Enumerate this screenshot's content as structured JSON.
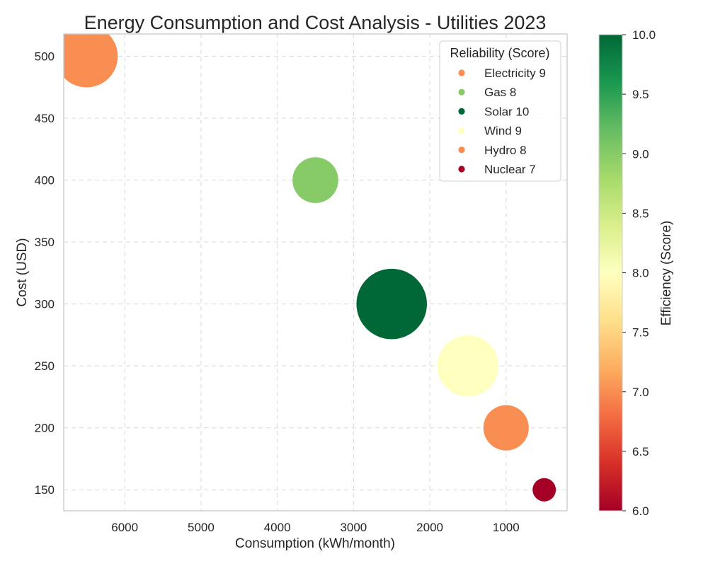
{
  "chart_data": {
    "type": "scatter",
    "title": "Energy Consumption and Cost Analysis - Utilities 2023",
    "xlabel": "Consumption (kWh/month)",
    "ylabel": "Cost (USD)",
    "xlim": [
      6800,
      200
    ],
    "ylim": [
      133,
      518
    ],
    "x_inverted": true,
    "xticks": [
      6000,
      5000,
      4000,
      3000,
      2000,
      1000
    ],
    "yticks": [
      150,
      200,
      250,
      300,
      350,
      400,
      450,
      500
    ],
    "grid": true,
    "legend": {
      "title": "Reliability (Score)",
      "position": "top-right"
    },
    "colorbar": {
      "label": "Efficiency (Score)",
      "min": 6.0,
      "max": 10.0,
      "ticks": [
        "6.0",
        "6.5",
        "7.0",
        "7.5",
        "8.0",
        "8.5",
        "9.0",
        "9.5",
        "10.0"
      ],
      "colormap": "RdYlGn"
    },
    "points": [
      {
        "name": "Electricity",
        "reliability": 9,
        "legend_label": "Electricity 9",
        "x": 6500,
        "y": 500,
        "efficiency": 7,
        "size_rel": 1.0
      },
      {
        "name": "Gas",
        "reliability": 8,
        "legend_label": "Gas 8",
        "x": 3500,
        "y": 400,
        "efficiency": 9,
        "size_rel": 0.54
      },
      {
        "name": "Solar",
        "reliability": 10,
        "legend_label": "Solar 10",
        "x": 2500,
        "y": 300,
        "efficiency": 10,
        "size_rel": 1.28
      },
      {
        "name": "Wind",
        "reliability": 9,
        "legend_label": "Wind 9",
        "x": 1500,
        "y": 250,
        "efficiency": 8,
        "size_rel": 0.97
      },
      {
        "name": "Hydro",
        "reliability": 8,
        "legend_label": "Hydro 8",
        "x": 1000,
        "y": 200,
        "efficiency": 7,
        "size_rel": 0.53
      },
      {
        "name": "Nuclear",
        "reliability": 7,
        "legend_label": "Nuclear 7",
        "x": 500,
        "y": 150,
        "efficiency": 6,
        "size_rel": 0.14
      }
    ]
  }
}
